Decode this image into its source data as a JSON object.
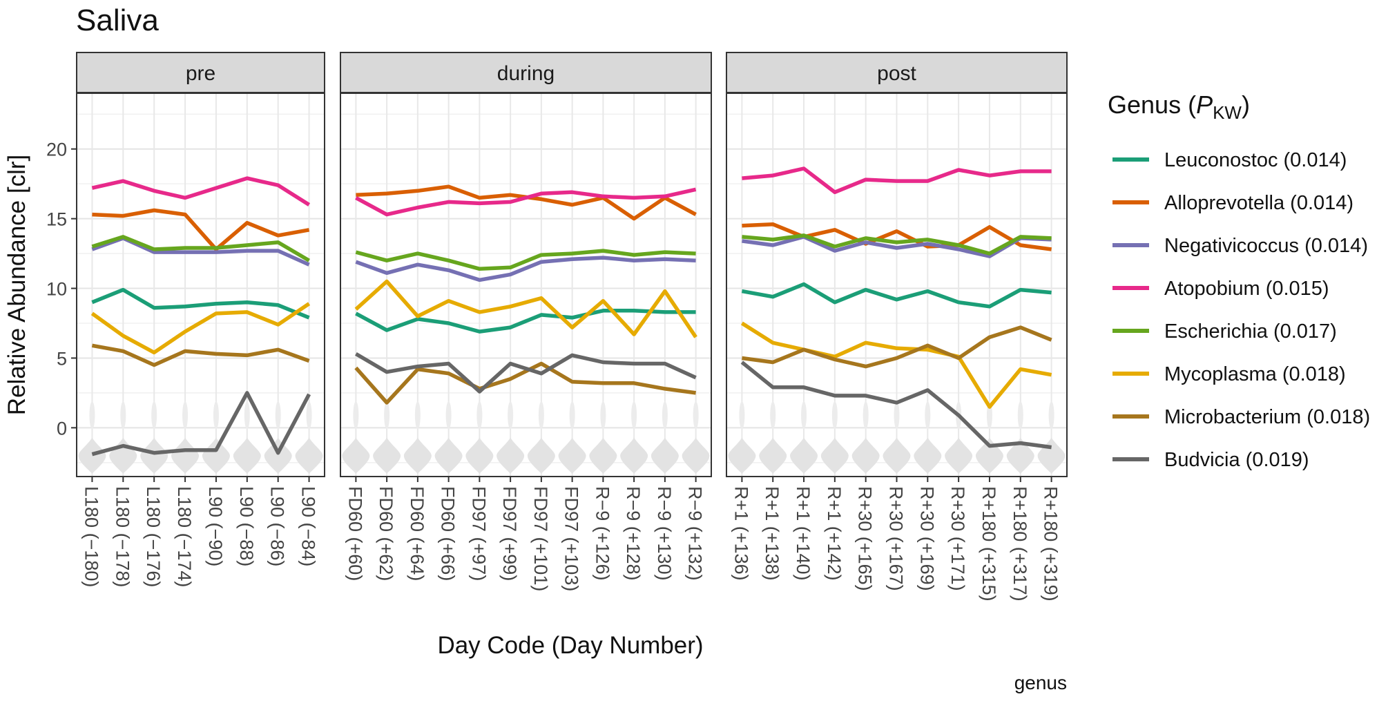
{
  "chart_data": {
    "type": "line",
    "title": "Saliva",
    "xlabel": "Day Code (Day Number)",
    "ylabel": "Relative Abundance [clr]",
    "caption": "genus",
    "ylim": [
      -3.5,
      24
    ],
    "yticks": [
      0,
      5,
      10,
      15,
      20
    ],
    "grid": true,
    "legend_position": "right",
    "legend": {
      "title_main": "Genus (",
      "title_sym": "P",
      "title_sub": "KW",
      "title_close": ")"
    },
    "panels": [
      {
        "label": "pre",
        "categories": [
          "L180 (−180)",
          "L180 (−178)",
          "L180 (−176)",
          "L180 (−174)",
          "L90 (−90)",
          "L90 (−88)",
          "L90 (−86)",
          "L90 (−84)"
        ]
      },
      {
        "label": "during",
        "categories": [
          "FD60 (+60)",
          "FD60 (+62)",
          "FD60 (+64)",
          "FD60 (+66)",
          "FD97 (+97)",
          "FD97 (+99)",
          "FD97 (+101)",
          "FD97 (+103)",
          "R−9 (+126)",
          "R−9 (+128)",
          "R−9 (+130)",
          "R−9 (+132)"
        ]
      },
      {
        "label": "post",
        "categories": [
          "R+1 (+136)",
          "R+1 (+138)",
          "R+1 (+140)",
          "R+1 (+142)",
          "R+30 (+165)",
          "R+30 (+167)",
          "R+30 (+169)",
          "R+30 (+171)",
          "R+180 (+315)",
          "R+180 (+317)",
          "R+180 (+319)"
        ]
      }
    ],
    "series": [
      {
        "name": "Leuconostoc (0.014)",
        "color": "#1b9e77",
        "values": [
          [
            9.0,
            9.9,
            8.6,
            8.7,
            8.9,
            9.0,
            8.8,
            7.9
          ],
          [
            8.2,
            7.0,
            7.8,
            7.5,
            6.9,
            7.2,
            8.1,
            7.9,
            8.4,
            8.4,
            8.3,
            8.3
          ],
          [
            9.8,
            9.4,
            10.3,
            9.0,
            9.9,
            9.2,
            9.8,
            9.0,
            8.7,
            9.9,
            9.7
          ]
        ]
      },
      {
        "name": "Alloprevotella (0.014)",
        "color": "#d95f02",
        "values": [
          [
            15.3,
            15.2,
            15.6,
            15.3,
            12.8,
            14.7,
            13.8,
            14.2
          ],
          [
            16.7,
            16.8,
            17.0,
            17.3,
            16.5,
            16.7,
            16.4,
            16.0,
            16.5,
            15.0,
            16.5,
            15.3
          ],
          [
            14.5,
            14.6,
            13.7,
            14.2,
            13.2,
            14.1,
            13.0,
            13.1,
            14.4,
            13.1,
            12.8
          ]
        ]
      },
      {
        "name": "Negativicoccus (0.014)",
        "color": "#7570b3",
        "values": [
          [
            12.8,
            13.6,
            12.6,
            12.6,
            12.6,
            12.7,
            12.7,
            11.7
          ],
          [
            11.9,
            11.1,
            11.7,
            11.3,
            10.6,
            11.0,
            11.9,
            12.1,
            12.2,
            12.0,
            12.1,
            12.0
          ],
          [
            13.4,
            13.1,
            13.7,
            12.7,
            13.3,
            12.9,
            13.2,
            12.8,
            12.3,
            13.6,
            13.5
          ]
        ]
      },
      {
        "name": "Atopobium (0.015)",
        "color": "#e7298a",
        "values": [
          [
            17.2,
            17.7,
            17.0,
            16.5,
            17.2,
            17.9,
            17.4,
            16.0
          ],
          [
            16.5,
            15.3,
            15.8,
            16.2,
            16.1,
            16.2,
            16.8,
            16.9,
            16.6,
            16.5,
            16.6,
            17.1
          ],
          [
            17.9,
            18.1,
            18.6,
            16.9,
            17.8,
            17.7,
            17.7,
            18.5,
            18.1,
            18.4,
            18.4
          ]
        ]
      },
      {
        "name": "Escherichia (0.017)",
        "color": "#66a61e",
        "values": [
          [
            13.0,
            13.7,
            12.8,
            12.9,
            12.9,
            13.1,
            13.3,
            12.0
          ],
          [
            12.6,
            12.0,
            12.5,
            12.0,
            11.4,
            11.5,
            12.4,
            12.5,
            12.7,
            12.4,
            12.6,
            12.5
          ],
          [
            13.7,
            13.5,
            13.8,
            13.0,
            13.6,
            13.3,
            13.5,
            13.1,
            12.5,
            13.7,
            13.6
          ]
        ]
      },
      {
        "name": "Mycoplasma (0.018)",
        "color": "#e6ab02",
        "values": [
          [
            8.2,
            6.6,
            5.4,
            6.9,
            8.2,
            8.3,
            7.4,
            8.9
          ],
          [
            8.5,
            10.5,
            8.0,
            9.1,
            8.3,
            8.7,
            9.3,
            7.2,
            9.1,
            6.7,
            9.8,
            6.5
          ],
          [
            7.5,
            6.1,
            5.6,
            5.1,
            6.1,
            5.7,
            5.6,
            5.1,
            1.5,
            4.2,
            3.8
          ]
        ]
      },
      {
        "name": "Microbacterium (0.018)",
        "color": "#a6761d",
        "values": [
          [
            5.9,
            5.5,
            4.5,
            5.5,
            5.3,
            5.2,
            5.6,
            4.8
          ],
          [
            4.3,
            1.8,
            4.2,
            3.9,
            2.8,
            3.5,
            4.6,
            3.3,
            3.2,
            3.2,
            2.8,
            2.5
          ],
          [
            5.0,
            4.7,
            5.6,
            4.9,
            4.4,
            5.0,
            5.9,
            5.0,
            6.5,
            7.2,
            6.3
          ]
        ]
      },
      {
        "name": "Budvicia (0.019)",
        "color": "#666666",
        "values": [
          [
            -1.9,
            -1.3,
            -1.8,
            -1.6,
            -1.6,
            2.5,
            -1.8,
            2.4
          ],
          [
            5.3,
            4.0,
            4.4,
            4.6,
            2.6,
            4.6,
            3.9,
            5.2,
            4.7,
            4.6,
            4.6,
            3.6
          ],
          [
            4.7,
            2.9,
            2.9,
            2.3,
            2.3,
            1.8,
            2.7,
            0.9,
            -1.3,
            -1.1,
            -1.4
          ]
        ]
      }
    ]
  }
}
